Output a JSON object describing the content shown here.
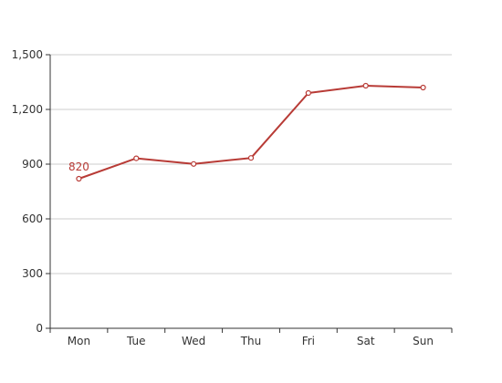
{
  "chart_data": {
    "type": "line",
    "categories": [
      "Mon",
      "Tue",
      "Wed",
      "Thu",
      "Fri",
      "Sat",
      "Sun"
    ],
    "values": [
      820,
      932,
      901,
      934,
      1290,
      1330,
      1320
    ],
    "ylim": [
      0,
      1500
    ],
    "yticks": [
      0,
      300,
      600,
      900,
      1200,
      1500
    ],
    "ytick_labels": [
      "0",
      "300",
      "600",
      "900",
      "1,200",
      "1,500"
    ],
    "grid": true,
    "legend": false,
    "line_color": "#b83b36",
    "data_labels": [
      {
        "category": "Mon",
        "value": 820,
        "text": "820"
      }
    ]
  }
}
